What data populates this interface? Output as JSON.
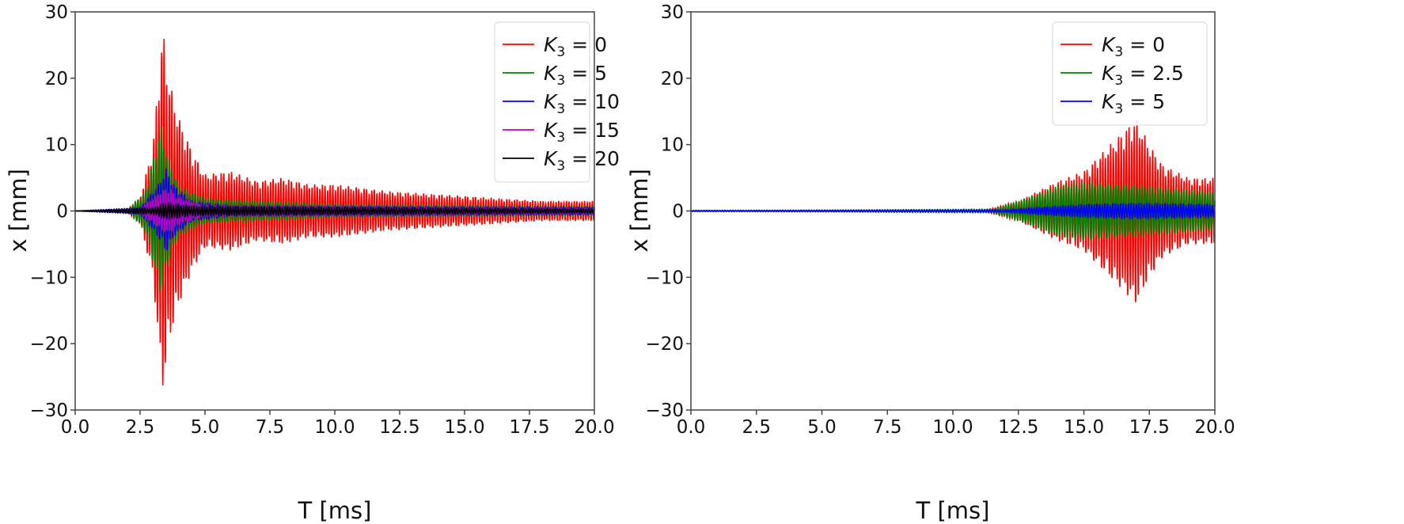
{
  "chart_data": [
    {
      "type": "line",
      "xlabel": "T [ms]",
      "ylabel": "x [mm]",
      "xlim": [
        0,
        20
      ],
      "ylim": [
        -30,
        30
      ],
      "xticks": [
        "0.0",
        "2.5",
        "5.0",
        "7.5",
        "10.0",
        "12.5",
        "15.0",
        "17.5",
        "20.0"
      ],
      "yticks": [
        "−30",
        "−20",
        "−10",
        "0",
        "10",
        "20",
        "30"
      ],
      "grid": false,
      "legend_position": "top-right",
      "series": [
        {
          "name": "K3 = 0",
          "label_var": "K",
          "label_sub": "3",
          "label_val": "0",
          "color": "#ff0000",
          "envelope": [
            [
              0,
              0
            ],
            [
              2,
              0.2
            ],
            [
              2.5,
              2
            ],
            [
              3.0,
              10
            ],
            [
              3.3,
              25
            ],
            [
              3.4,
              27
            ],
            [
              3.6,
              20
            ],
            [
              4.0,
              14
            ],
            [
              4.5,
              9
            ],
            [
              5.0,
              5.5
            ],
            [
              6,
              6
            ],
            [
              7,
              4.5
            ],
            [
              8,
              5
            ],
            [
              9,
              4
            ],
            [
              10,
              4
            ],
            [
              12,
              3
            ],
            [
              14,
              2.5
            ],
            [
              16,
              2
            ],
            [
              18,
              1.5
            ],
            [
              20,
              1.5
            ]
          ]
        },
        {
          "name": "K3 = 5",
          "label_var": "K",
          "label_sub": "3",
          "label_val": "5",
          "color": "#008000",
          "envelope": [
            [
              0,
              0
            ],
            [
              2,
              0.1
            ],
            [
              2.7,
              3
            ],
            [
              3.3,
              13
            ],
            [
              3.6,
              8
            ],
            [
              4,
              4
            ],
            [
              5,
              2
            ],
            [
              7,
              1.5
            ],
            [
              10,
              1
            ],
            [
              20,
              0.7
            ]
          ]
        },
        {
          "name": "K3 = 10",
          "label_var": "K",
          "label_sub": "3",
          "label_val": "10",
          "color": "#0000ff",
          "envelope": [
            [
              0,
              0
            ],
            [
              2.5,
              0.5
            ],
            [
              3.2,
              4
            ],
            [
              3.5,
              6.5
            ],
            [
              3.8,
              4
            ],
            [
              4.5,
              1.5
            ],
            [
              6,
              0.8
            ],
            [
              20,
              0.6
            ]
          ]
        },
        {
          "name": "K3 = 15",
          "label_var": "K",
          "label_sub": "3",
          "label_val": "15",
          "color": "#bf00bf",
          "envelope": [
            [
              0,
              0
            ],
            [
              2.5,
              0.3
            ],
            [
              3.3,
              3
            ],
            [
              3.6,
              3.5
            ],
            [
              4,
              2
            ],
            [
              5,
              0.8
            ],
            [
              20,
              0.4
            ]
          ]
        },
        {
          "name": "K3 = 20",
          "label_var": "K",
          "label_sub": "3",
          "label_val": "20",
          "color": "#000000",
          "envelope": [
            [
              0,
              0
            ],
            [
              3,
              0.5
            ],
            [
              3.5,
              1.2
            ],
            [
              4.5,
              0.7
            ],
            [
              20,
              0.3
            ]
          ]
        }
      ]
    },
    {
      "type": "line",
      "xlabel": "T [ms]",
      "ylabel": "x [mm]",
      "xlim": [
        0,
        20
      ],
      "ylim": [
        -30,
        30
      ],
      "xticks": [
        "0.0",
        "2.5",
        "5.0",
        "7.5",
        "10.0",
        "12.5",
        "15.0",
        "17.5",
        "20.0"
      ],
      "yticks": [
        "−30",
        "−20",
        "−10",
        "0",
        "10",
        "20",
        "30"
      ],
      "grid": false,
      "legend_position": "top-right",
      "series": [
        {
          "name": "K3 = 0",
          "label_var": "K",
          "label_sub": "3",
          "label_val": "0",
          "color": "#ff0000",
          "envelope": [
            [
              0,
              0
            ],
            [
              11,
              0.05
            ],
            [
              11.5,
              0.4
            ],
            [
              12.5,
              1.5
            ],
            [
              14,
              4.5
            ],
            [
              15,
              6
            ],
            [
              16,
              10
            ],
            [
              17,
              14
            ],
            [
              17.5,
              10
            ],
            [
              18,
              7
            ],
            [
              19,
              5
            ],
            [
              20,
              5
            ]
          ]
        },
        {
          "name": "K3 = 2.5",
          "label_var": "K",
          "label_sub": "3",
          "label_val": "2.5",
          "color": "#008000",
          "envelope": [
            [
              0,
              0
            ],
            [
              11.5,
              0.3
            ],
            [
              12.5,
              1.5
            ],
            [
              14,
              4
            ],
            [
              15,
              4.5
            ],
            [
              17,
              4
            ],
            [
              20,
              3
            ]
          ]
        },
        {
          "name": "K3 = 5",
          "label_var": "K",
          "label_sub": "3",
          "label_val": "5",
          "color": "#0000ff",
          "envelope": [
            [
              0,
              0.1
            ],
            [
              12,
              0.2
            ],
            [
              13,
              0.5
            ],
            [
              15,
              1
            ],
            [
              17,
              1.2
            ],
            [
              20,
              1
            ]
          ]
        }
      ]
    }
  ]
}
